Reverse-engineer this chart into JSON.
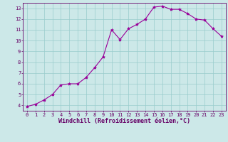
{
  "x": [
    0,
    1,
    2,
    3,
    4,
    5,
    6,
    7,
    8,
    9,
    10,
    11,
    12,
    13,
    14,
    15,
    16,
    17,
    18,
    19,
    20,
    21,
    22,
    23
  ],
  "y": [
    3.9,
    4.1,
    4.5,
    5.0,
    5.9,
    6.0,
    6.0,
    6.6,
    7.5,
    8.5,
    11.0,
    10.1,
    11.1,
    11.5,
    12.0,
    13.1,
    13.2,
    12.9,
    12.9,
    12.5,
    12.0,
    11.9,
    11.1,
    10.4
  ],
  "line_color": "#990099",
  "marker": "*",
  "marker_size": 3,
  "bg_color": "#cce8e8",
  "grid_color": "#99cccc",
  "xlabel": "Windchill (Refroidissement éolien,°C)",
  "xlabel_color": "#660066",
  "tick_color": "#660066",
  "ylim": [
    3.5,
    13.5
  ],
  "xlim": [
    -0.5,
    23.5
  ],
  "yticks": [
    4,
    5,
    6,
    7,
    8,
    9,
    10,
    11,
    12,
    13
  ],
  "xticks": [
    0,
    1,
    2,
    3,
    4,
    5,
    6,
    7,
    8,
    9,
    10,
    11,
    12,
    13,
    14,
    15,
    16,
    17,
    18,
    19,
    20,
    21,
    22,
    23
  ],
  "spine_color": "#660066",
  "font_size_ticks": 5,
  "font_size_xlabel": 6,
  "linewidth": 0.8
}
